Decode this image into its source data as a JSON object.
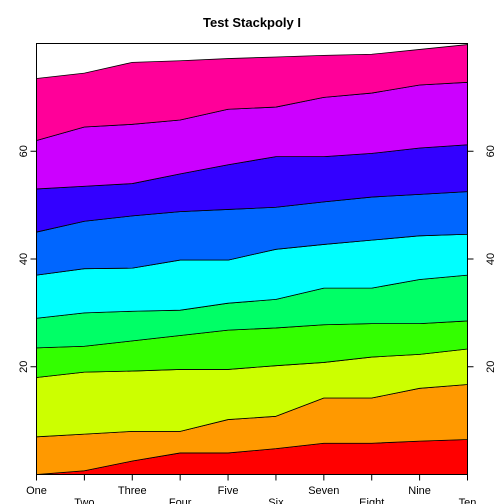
{
  "chart_data": {
    "type": "area",
    "stacked": true,
    "title": "Test Stackpoly I",
    "xlabel": "",
    "ylabel": "",
    "categories": [
      "One",
      "Two",
      "Three",
      "Four",
      "Five",
      "Six",
      "Seven",
      "Eight",
      "Nine",
      "Ten"
    ],
    "ylim": [
      0,
      80
    ],
    "yticks": [
      20,
      40,
      60
    ],
    "grid": false,
    "legend": "none",
    "cumulative_boundaries": [
      [
        0.0,
        0.7,
        2.5,
        4.0,
        4.0,
        4.8,
        5.8,
        5.8,
        6.2,
        6.5
      ],
      [
        7.0,
        7.5,
        8.0,
        8.0,
        10.2,
        10.8,
        14.2,
        14.2,
        16.0,
        16.7
      ],
      [
        18.0,
        19.0,
        19.2,
        19.5,
        19.5,
        20.2,
        20.8,
        21.8,
        22.3,
        23.3
      ],
      [
        23.5,
        23.8,
        24.8,
        25.8,
        26.8,
        27.2,
        27.8,
        28.0,
        28.0,
        28.5
      ],
      [
        29.0,
        30.0,
        30.3,
        30.5,
        31.8,
        32.5,
        34.6,
        34.6,
        36.2,
        37.0
      ],
      [
        37.0,
        38.2,
        38.3,
        39.8,
        39.8,
        41.8,
        42.7,
        43.5,
        44.3,
        44.6
      ],
      [
        45.0,
        47.0,
        48.0,
        48.8,
        49.2,
        49.6,
        50.6,
        51.5,
        52.0,
        52.5
      ],
      [
        53.0,
        53.5,
        54.0,
        55.8,
        57.5,
        59.0,
        59.0,
        59.6,
        60.6,
        61.2
      ],
      [
        62.0,
        64.5,
        65.0,
        65.8,
        67.8,
        68.2,
        70.0,
        70.8,
        72.3,
        72.8
      ],
      [
        73.5,
        74.5,
        76.5,
        76.8,
        77.2,
        77.5,
        77.8,
        78.0,
        78.9,
        79.8
      ]
    ],
    "colors": [
      "#FF0000",
      "#FF9900",
      "#CCFF00",
      "#33FF00",
      "#00FF66",
      "#00FFFF",
      "#0066FF",
      "#3300FF",
      "#CC00FF",
      "#FF0099"
    ]
  }
}
